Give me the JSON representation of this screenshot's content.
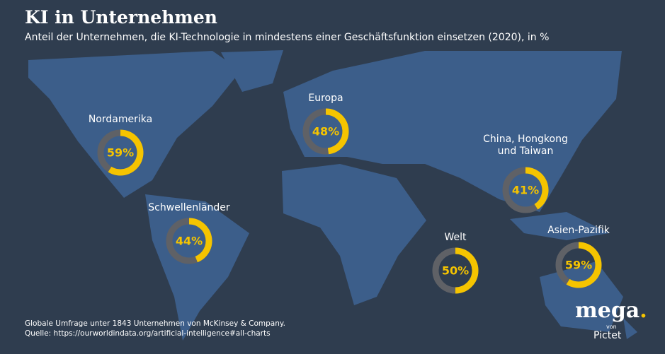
{
  "title": "KI in Unternehmen",
  "subtitle": "Anteil der Unternehmen, die KI-Technologie in mindestens einer Geschäftsfunktion einsetzen (2020), in %",
  "chart_data": {
    "type": "donut",
    "categories": [
      "Nordamerika",
      "Europa",
      "China, Hongkong und Taiwan",
      "Schwellenländer",
      "Asien-Pazifik",
      "Welt"
    ],
    "values": [
      59,
      48,
      41,
      44,
      59,
      50
    ],
    "value_labels": [
      "59%",
      "48%",
      "41%",
      "44%",
      "59%",
      "50%"
    ],
    "max": 100,
    "color": "#f5c400",
    "track_color": "#5f6166"
  },
  "notes": [
    "Globale Umfrage unter 1843 Unternehmen von McKinsey & Company.",
    "Quelle: https://ourworldindata.org/artificial-intelligence#all-charts"
  ],
  "logo": {
    "brand": "mega",
    "dot": ".",
    "von": "von",
    "owner": "Pictet"
  }
}
